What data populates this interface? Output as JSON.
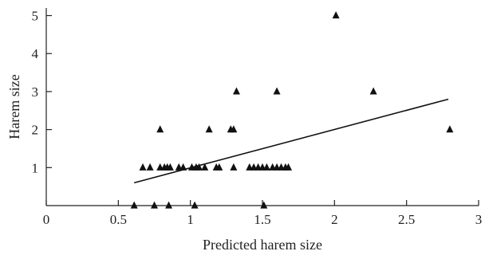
{
  "chart_data": {
    "type": "scatter",
    "title": "",
    "xlabel": "Predicted harem size",
    "ylabel": "Harem size",
    "xlim": [
      0,
      3
    ],
    "ylim": [
      0,
      5.2
    ],
    "xticks": [
      0,
      0.5,
      1,
      1.5,
      2,
      2.5,
      3
    ],
    "xtick_labels": [
      "0",
      "0.5",
      "1",
      "1.5",
      "2",
      "2.5",
      "3"
    ],
    "yticks": [
      1,
      2,
      3,
      4,
      5
    ],
    "ytick_labels": [
      "1",
      "2",
      "3",
      "4",
      "5"
    ],
    "grid": false,
    "legend": "none",
    "marker": "filled-triangle",
    "marker_color": "#111111",
    "points": [
      {
        "x": 0.61,
        "y": 0
      },
      {
        "x": 0.75,
        "y": 0
      },
      {
        "x": 0.85,
        "y": 0
      },
      {
        "x": 1.03,
        "y": 0
      },
      {
        "x": 1.51,
        "y": 0
      },
      {
        "x": 0.67,
        "y": 1
      },
      {
        "x": 0.72,
        "y": 1
      },
      {
        "x": 0.79,
        "y": 1
      },
      {
        "x": 0.82,
        "y": 1
      },
      {
        "x": 0.84,
        "y": 1
      },
      {
        "x": 0.86,
        "y": 1
      },
      {
        "x": 0.92,
        "y": 1
      },
      {
        "x": 0.95,
        "y": 1
      },
      {
        "x": 1.01,
        "y": 1
      },
      {
        "x": 1.04,
        "y": 1
      },
      {
        "x": 1.06,
        "y": 1
      },
      {
        "x": 1.1,
        "y": 1
      },
      {
        "x": 1.18,
        "y": 1
      },
      {
        "x": 1.2,
        "y": 1
      },
      {
        "x": 1.3,
        "y": 1
      },
      {
        "x": 1.41,
        "y": 1
      },
      {
        "x": 1.44,
        "y": 1
      },
      {
        "x": 1.47,
        "y": 1
      },
      {
        "x": 1.5,
        "y": 1
      },
      {
        "x": 1.53,
        "y": 1
      },
      {
        "x": 1.57,
        "y": 1
      },
      {
        "x": 1.6,
        "y": 1
      },
      {
        "x": 1.63,
        "y": 1
      },
      {
        "x": 1.66,
        "y": 1
      },
      {
        "x": 1.68,
        "y": 1
      },
      {
        "x": 0.79,
        "y": 2
      },
      {
        "x": 1.13,
        "y": 2
      },
      {
        "x": 1.28,
        "y": 2
      },
      {
        "x": 1.3,
        "y": 2
      },
      {
        "x": 1.32,
        "y": 3
      },
      {
        "x": 1.6,
        "y": 3
      },
      {
        "x": 2.27,
        "y": 3
      },
      {
        "x": 2.01,
        "y": 5
      },
      {
        "x": 2.8,
        "y": 2
      }
    ],
    "trend_line": {
      "x": [
        0.61,
        2.79
      ],
      "y": [
        0.6,
        2.8
      ]
    }
  }
}
